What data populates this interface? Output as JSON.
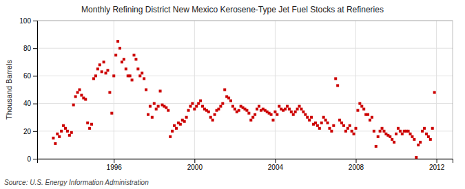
{
  "chart_data": {
    "type": "scatter",
    "title": "Monthly Refining District New Mexico Kerosene-Type Jet Fuel Stocks at Refineries",
    "ylabel": "Thousand Barrels",
    "source": "Source: U.S. Energy Information Administration",
    "color": "#cc0000",
    "marker": "square",
    "grid": true,
    "xlim": [
      1992.2,
      2012.8
    ],
    "ylim": [
      0,
      100
    ],
    "xticks": [
      1996,
      2000,
      2004,
      2008,
      2012
    ],
    "yticks": [
      0,
      20,
      40,
      60,
      80,
      100
    ],
    "x": [
      1993.0,
      1993.1,
      1993.2,
      1993.3,
      1993.4,
      1993.5,
      1993.6,
      1993.7,
      1993.8,
      1993.9,
      1994.0,
      1994.1,
      1994.2,
      1994.3,
      1994.4,
      1994.5,
      1994.6,
      1994.7,
      1994.8,
      1994.9,
      1995.0,
      1995.1,
      1995.2,
      1995.3,
      1995.4,
      1995.5,
      1995.6,
      1995.7,
      1995.8,
      1995.9,
      1996.0,
      1996.1,
      1996.2,
      1996.3,
      1996.4,
      1996.5,
      1996.6,
      1996.7,
      1996.8,
      1996.9,
      1997.0,
      1997.1,
      1997.2,
      1997.3,
      1997.4,
      1997.5,
      1997.6,
      1997.7,
      1997.8,
      1997.9,
      1998.0,
      1998.1,
      1998.2,
      1998.3,
      1998.4,
      1998.5,
      1998.6,
      1998.7,
      1998.8,
      1998.9,
      1999.0,
      1999.1,
      1999.2,
      1999.3,
      1999.4,
      1999.5,
      1999.6,
      1999.7,
      1999.8,
      1999.9,
      2000.0,
      2000.1,
      2000.2,
      2000.3,
      2000.4,
      2000.5,
      2000.6,
      2000.7,
      2000.8,
      2000.9,
      2001.0,
      2001.1,
      2001.2,
      2001.3,
      2001.4,
      2001.5,
      2001.6,
      2001.7,
      2001.8,
      2001.9,
      2002.0,
      2002.1,
      2002.2,
      2002.3,
      2002.4,
      2002.5,
      2002.6,
      2002.7,
      2002.8,
      2002.9,
      2003.0,
      2003.1,
      2003.2,
      2003.3,
      2003.4,
      2003.5,
      2003.6,
      2003.7,
      2003.8,
      2003.9,
      2004.0,
      2004.1,
      2004.2,
      2004.3,
      2004.4,
      2004.5,
      2004.6,
      2004.7,
      2004.8,
      2004.9,
      2005.0,
      2005.1,
      2005.2,
      2005.3,
      2005.4,
      2005.5,
      2005.6,
      2005.7,
      2005.8,
      2005.9,
      2006.0,
      2006.1,
      2006.2,
      2006.3,
      2006.4,
      2006.5,
      2006.6,
      2006.7,
      2006.8,
      2006.9,
      2007.0,
      2007.1,
      2007.2,
      2007.3,
      2007.4,
      2007.5,
      2007.6,
      2007.7,
      2007.8,
      2007.9,
      2008.0,
      2008.1,
      2008.2,
      2008.3,
      2008.4,
      2008.5,
      2008.6,
      2008.7,
      2008.8,
      2008.9,
      2009.0,
      2009.1,
      2009.2,
      2009.3,
      2009.4,
      2009.5,
      2009.6,
      2009.7,
      2009.8,
      2009.9,
      2010.0,
      2010.1,
      2010.2,
      2010.3,
      2010.4,
      2010.5,
      2010.6,
      2010.7,
      2010.8,
      2010.9,
      2011.0,
      2011.1,
      2011.2,
      2011.3,
      2011.4,
      2011.5,
      2011.6,
      2011.7,
      2011.8,
      2011.9
    ],
    "values": [
      15,
      11,
      18,
      16,
      20,
      24,
      22,
      20,
      17,
      19,
      39,
      45,
      48,
      50,
      46,
      44,
      43,
      26,
      22,
      25,
      58,
      60,
      65,
      68,
      63,
      70,
      62,
      64,
      48,
      33,
      60,
      75,
      85,
      80,
      70,
      72,
      65,
      60,
      60,
      57,
      75,
      72,
      65,
      60,
      62,
      58,
      50,
      32,
      38,
      30,
      40,
      36,
      38,
      49,
      39,
      38,
      37,
      35,
      16,
      20,
      24,
      22,
      26,
      25,
      28,
      27,
      30,
      35,
      38,
      40,
      36,
      38,
      40,
      42,
      38,
      36,
      35,
      34,
      30,
      28,
      32,
      35,
      36,
      38,
      40,
      50,
      45,
      44,
      42,
      38,
      36,
      34,
      35,
      38,
      37,
      36,
      35,
      33,
      28,
      30,
      32,
      36,
      38,
      35,
      36,
      35,
      34,
      33,
      32,
      28,
      34,
      32,
      38,
      36,
      35,
      36,
      38,
      36,
      34,
      32,
      34,
      36,
      38,
      36,
      34,
      32,
      30,
      28,
      30,
      25,
      26,
      24,
      22,
      26,
      30,
      28,
      26,
      22,
      20,
      24,
      58,
      53,
      28,
      26,
      24,
      20,
      22,
      24,
      20,
      18,
      22,
      35,
      40,
      38,
      36,
      32,
      32,
      28,
      30,
      20,
      9,
      16,
      20,
      22,
      20,
      18,
      17,
      16,
      14,
      12,
      18,
      22,
      20,
      18,
      20,
      20,
      20,
      18,
      16,
      14,
      1,
      10,
      12,
      20,
      22,
      18,
      16,
      14,
      22,
      48
    ]
  }
}
